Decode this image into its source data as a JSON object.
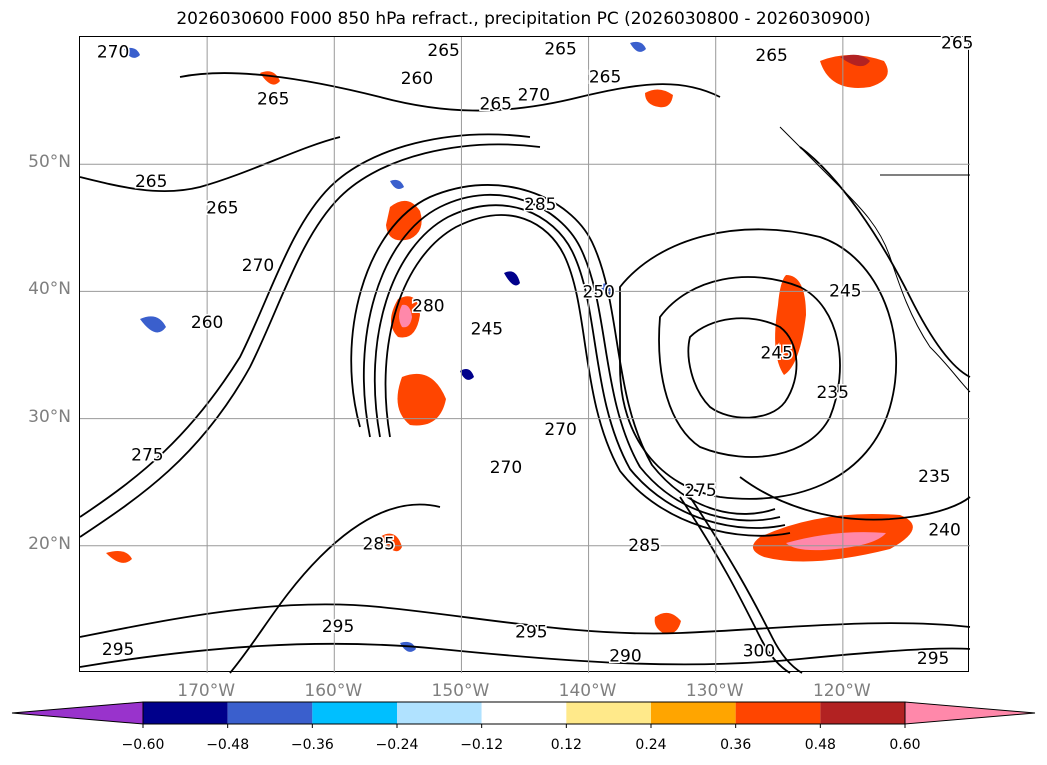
{
  "title": "2026030600 F000 850 hPa refract., precipitation PC (2026030800 - 2026030900)",
  "map": {
    "lat_labels": [
      {
        "text": "50°N",
        "lat": 50
      },
      {
        "text": "40°N",
        "lat": 40
      },
      {
        "text": "30°N",
        "lat": 30
      },
      {
        "text": "20°N",
        "lat": 20
      }
    ],
    "lon_labels": [
      {
        "text": "170°W",
        "lon": -170
      },
      {
        "text": "160°W",
        "lon": -160
      },
      {
        "text": "150°W",
        "lon": -150
      },
      {
        "text": "140°W",
        "lon": -140
      },
      {
        "text": "130°W",
        "lon": -130
      },
      {
        "text": "120°W",
        "lon": -120
      }
    ],
    "extent": {
      "lon_min": -180,
      "lon_max": -110,
      "lat_min": 10,
      "lat_max": 60
    },
    "contour_labels": [
      {
        "text": "270",
        "lon": -177.4,
        "lat": 58.8
      },
      {
        "text": "265",
        "lon": -151.4,
        "lat": 58.9
      },
      {
        "text": "260",
        "lon": -153.5,
        "lat": 56.7
      },
      {
        "text": "265",
        "lon": -164.8,
        "lat": 55.1
      },
      {
        "text": "265",
        "lon": -142.2,
        "lat": 59.0
      },
      {
        "text": "265",
        "lon": -138.7,
        "lat": 56.8
      },
      {
        "text": "270",
        "lon": -144.3,
        "lat": 55.4
      },
      {
        "text": "265",
        "lon": -147.3,
        "lat": 54.7
      },
      {
        "text": "265",
        "lon": -125.6,
        "lat": 58.5
      },
      {
        "text": "265",
        "lon": -111.0,
        "lat": 59.5
      },
      {
        "text": "265",
        "lon": -174.4,
        "lat": 48.6
      },
      {
        "text": "265",
        "lon": -168.8,
        "lat": 46.5
      },
      {
        "text": "270",
        "lon": -166.0,
        "lat": 42.0
      },
      {
        "text": "260",
        "lon": -170.0,
        "lat": 37.5
      },
      {
        "text": "285",
        "lon": -143.8,
        "lat": 46.8
      },
      {
        "text": "280",
        "lon": -152.6,
        "lat": 38.8
      },
      {
        "text": "245",
        "lon": -148.0,
        "lat": 37.0
      },
      {
        "text": "250",
        "lon": -139.2,
        "lat": 39.9
      },
      {
        "text": "245",
        "lon": -125.2,
        "lat": 35.1
      },
      {
        "text": "245",
        "lon": -119.8,
        "lat": 40.0
      },
      {
        "text": "235",
        "lon": -120.8,
        "lat": 32.0
      },
      {
        "text": "275",
        "lon": -174.7,
        "lat": 27.1
      },
      {
        "text": "270",
        "lon": -142.2,
        "lat": 29.1
      },
      {
        "text": "270",
        "lon": -146.5,
        "lat": 26.1
      },
      {
        "text": "275",
        "lon": -131.2,
        "lat": 24.3
      },
      {
        "text": "285",
        "lon": -135.6,
        "lat": 20.0
      },
      {
        "text": "235",
        "lon": -112.8,
        "lat": 25.4
      },
      {
        "text": "240",
        "lon": -112.0,
        "lat": 21.2
      },
      {
        "text": "285",
        "lon": -156.5,
        "lat": 20.1
      },
      {
        "text": "295",
        "lon": -177.0,
        "lat": 11.8
      },
      {
        "text": "295",
        "lon": -159.7,
        "lat": 13.6
      },
      {
        "text": "290",
        "lon": -137.1,
        "lat": 11.3
      },
      {
        "text": "300",
        "lon": -126.6,
        "lat": 11.7
      },
      {
        "text": "295",
        "lon": -112.9,
        "lat": 11.1
      },
      {
        "text": "295",
        "lon": -144.5,
        "lat": 13.2
      }
    ]
  },
  "colorbar": {
    "levels": [
      -0.6,
      -0.48,
      -0.36,
      -0.24,
      -0.12,
      0.12,
      0.24,
      0.36,
      0.48,
      0.6
    ],
    "tick_labels": [
      "−0.60",
      "−0.48",
      "−0.36",
      "−0.24",
      "−0.12",
      "0.12",
      "0.24",
      "0.36",
      "0.48",
      "0.60"
    ],
    "colors": [
      "#9933cc",
      "#00008b",
      "#3a5fcd",
      "#00bfff",
      "#b0e2ff",
      "#ffffff",
      "#ffe98a",
      "#ffa500",
      "#ff4500",
      "#b22222",
      "#ff88aa"
    ]
  }
}
